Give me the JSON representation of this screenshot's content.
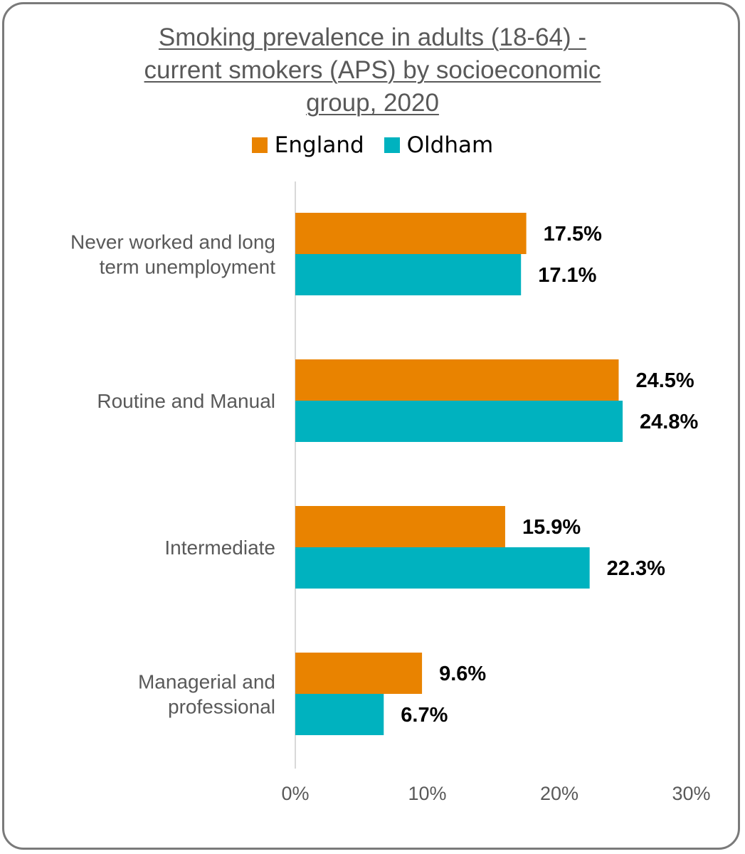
{
  "chart_data": {
    "type": "bar",
    "orientation": "horizontal",
    "title_lines": [
      "Smoking prevalence in adults (18-64) -",
      "current smokers (APS) by socioeconomic",
      "group, 2020"
    ],
    "categories": [
      [
        "Never worked and long",
        "term unemployment"
      ],
      [
        "Routine and Manual"
      ],
      [
        "Intermediate"
      ],
      [
        "Managerial and",
        "professional"
      ]
    ],
    "series": [
      {
        "name": "England",
        "color": "#E98300",
        "values": [
          17.5,
          24.5,
          15.9,
          9.6
        ],
        "labels": [
          "17.5%",
          "24.5%",
          "15.9%",
          "9.6%"
        ]
      },
      {
        "name": "Oldham",
        "color": "#00B2BF",
        "values": [
          17.1,
          24.8,
          22.3,
          6.7
        ],
        "labels": [
          "17.1%",
          "24.8%",
          "22.3%",
          "6.7%"
        ]
      }
    ],
    "xlim": [
      0,
      30
    ],
    "x_ticks": [
      0,
      10,
      20,
      30
    ],
    "x_tick_labels": [
      "0%",
      "10%",
      "20%",
      "30%"
    ],
    "legend_position": "top",
    "grid": false
  }
}
